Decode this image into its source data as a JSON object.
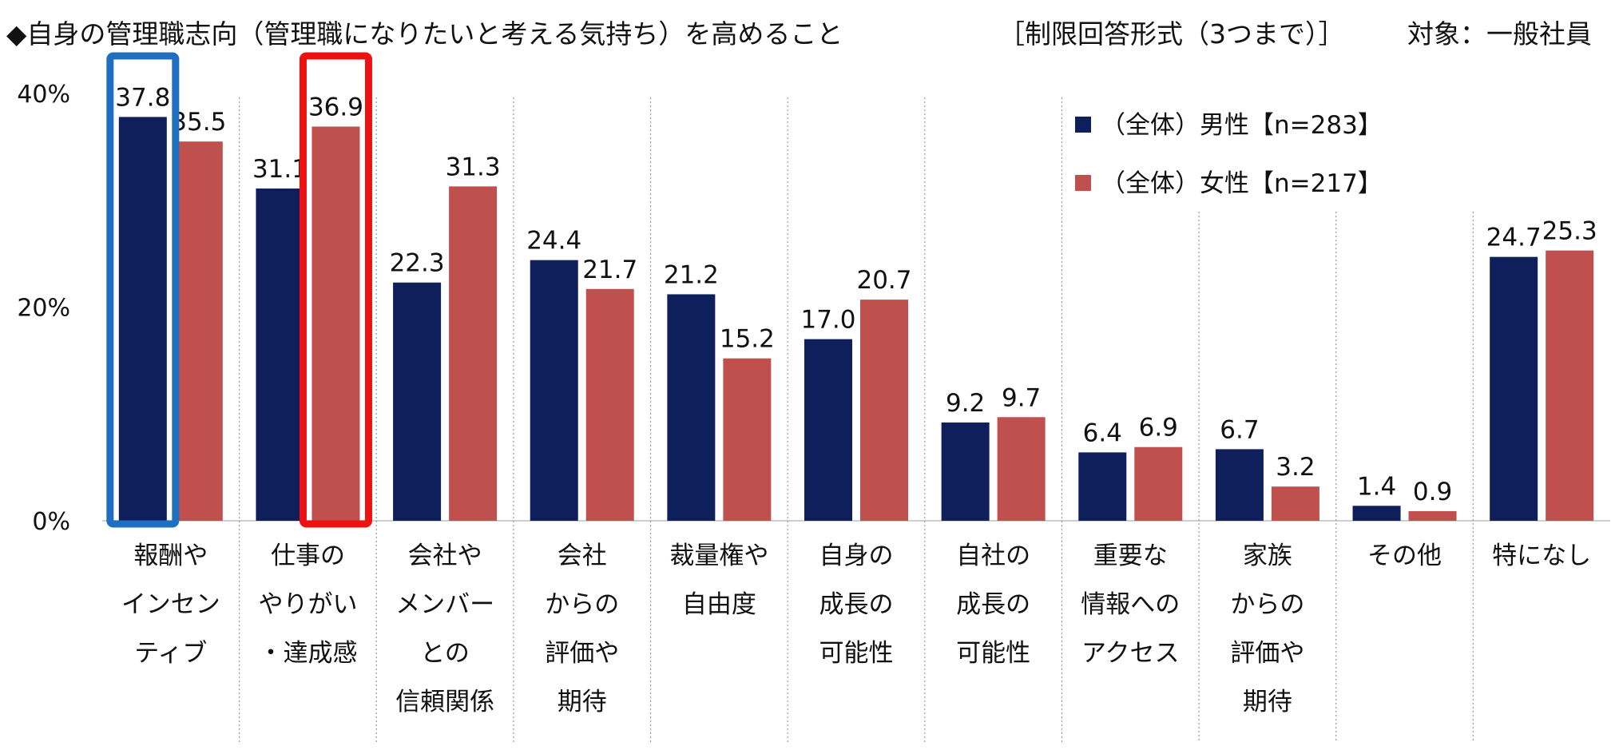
{
  "chart_data": {
    "type": "bar",
    "title": "◆自身の管理職志向（管理職になりたいと考える気持ち）を高めること",
    "subtitle": "［制限回答形式（3つまで）］",
    "target": "対象：一般社員",
    "ylim": [
      0,
      40
    ],
    "yticks": [
      "0%",
      "20%",
      "40%"
    ],
    "categories": [
      [
        "報酬や",
        "インセン",
        "ティブ"
      ],
      [
        "仕事の",
        "やりがい",
        "・達成感"
      ],
      [
        "会社や",
        "メンバー",
        "との",
        "信頼関係"
      ],
      [
        "会社",
        "からの",
        "評価や",
        "期待"
      ],
      [
        "裁量権や",
        "自由度"
      ],
      [
        "自身の",
        "成長の",
        "可能性"
      ],
      [
        "自社の",
        "成長の",
        "可能性"
      ],
      [
        "重要な",
        "情報への",
        "アクセス"
      ],
      [
        "家族",
        "からの",
        "評価や",
        "期待"
      ],
      [
        "その他"
      ],
      [
        "特になし"
      ]
    ],
    "series": [
      {
        "name": "（全体）男性【n=283】",
        "color": "#0f1f5c",
        "values": [
          37.8,
          31.1,
          22.3,
          24.4,
          21.2,
          17.0,
          9.2,
          6.4,
          6.7,
          1.4,
          24.7
        ],
        "labels": [
          "37.8",
          "31.1",
          "22.3",
          "24.4",
          "21.2",
          "17.0",
          "9.2",
          "6.4",
          "6.7",
          "1.4",
          "24.7"
        ]
      },
      {
        "name": "（全体）女性【n=217】",
        "color": "#c0504d",
        "values": [
          35.5,
          36.9,
          31.3,
          21.7,
          15.2,
          20.7,
          9.7,
          6.9,
          3.2,
          0.9,
          25.3
        ],
        "labels": [
          "35.5",
          "36.9",
          "31.3",
          "21.7",
          "15.2",
          "20.7",
          "9.7",
          "6.9",
          "3.2",
          "0.9",
          "25.3"
        ]
      }
    ],
    "highlights": [
      {
        "category_index": 0,
        "series_index": 0,
        "color": "#1f6fc0"
      },
      {
        "category_index": 1,
        "series_index": 1,
        "color": "#ee1111"
      }
    ],
    "legend_position": "top-right"
  }
}
